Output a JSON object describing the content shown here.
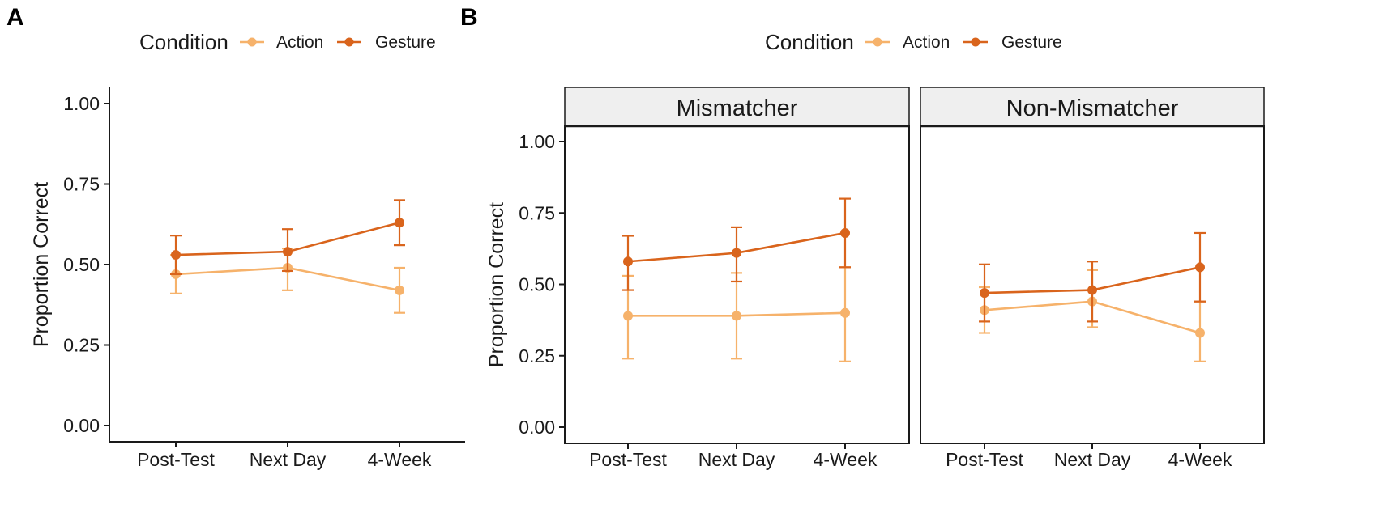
{
  "figure": {
    "panel_a_letter": "A",
    "panel_b_letter": "B"
  },
  "legend": {
    "title": "Condition",
    "entries": [
      {
        "label": "Action",
        "color": "#f6b26b"
      },
      {
        "label": "Gesture",
        "color": "#d9641c"
      }
    ]
  },
  "chart_data": [
    {
      "type": "line",
      "panel": "A",
      "title": "",
      "xlabel": "",
      "ylabel": "Proportion Correct",
      "categories": [
        "Post-Test",
        "Next Day",
        "4-Week"
      ],
      "ylim": [
        0,
        1
      ],
      "yticks": [
        "0.00",
        "0.25",
        "0.50",
        "0.75",
        "1.00"
      ],
      "grid": false,
      "legend_position": "top",
      "series": [
        {
          "name": "Action",
          "color": "#f6b26b",
          "values": [
            0.47,
            0.49,
            0.42
          ],
          "err_low": [
            0.41,
            0.42,
            0.35
          ],
          "err_high": [
            0.53,
            0.55,
            0.49
          ]
        },
        {
          "name": "Gesture",
          "color": "#d9641c",
          "values": [
            0.53,
            0.54,
            0.63
          ],
          "err_low": [
            0.47,
            0.48,
            0.56
          ],
          "err_high": [
            0.59,
            0.61,
            0.7
          ]
        }
      ]
    },
    {
      "type": "line",
      "panel": "B",
      "facet": "Mismatcher",
      "title": "Mismatcher",
      "xlabel": "",
      "ylabel": "Proportion Correct",
      "categories": [
        "Post-Test",
        "Next Day",
        "4-Week"
      ],
      "ylim": [
        0,
        1
      ],
      "yticks": [
        "0.00",
        "0.25",
        "0.50",
        "0.75",
        "1.00"
      ],
      "grid": false,
      "legend_position": "top",
      "series": [
        {
          "name": "Action",
          "color": "#f6b26b",
          "values": [
            0.39,
            0.39,
            0.4
          ],
          "err_low": [
            0.24,
            0.24,
            0.23
          ],
          "err_high": [
            0.53,
            0.54,
            0.56
          ]
        },
        {
          "name": "Gesture",
          "color": "#d9641c",
          "values": [
            0.58,
            0.61,
            0.68
          ],
          "err_low": [
            0.48,
            0.51,
            0.56
          ],
          "err_high": [
            0.67,
            0.7,
            0.8
          ]
        }
      ]
    },
    {
      "type": "line",
      "panel": "B",
      "facet": "Non-Mismatcher",
      "title": "Non-Mismatcher",
      "xlabel": "",
      "ylabel": "",
      "categories": [
        "Post-Test",
        "Next Day",
        "4-Week"
      ],
      "ylim": [
        0,
        1
      ],
      "grid": false,
      "series": [
        {
          "name": "Action",
          "color": "#f6b26b",
          "values": [
            0.41,
            0.44,
            0.33
          ],
          "err_low": [
            0.33,
            0.35,
            0.23
          ],
          "err_high": [
            0.49,
            0.55,
            0.44
          ]
        },
        {
          "name": "Gesture",
          "color": "#d9641c",
          "values": [
            0.47,
            0.48,
            0.56
          ],
          "err_low": [
            0.37,
            0.37,
            0.44
          ],
          "err_high": [
            0.57,
            0.58,
            0.68
          ]
        }
      ]
    }
  ]
}
